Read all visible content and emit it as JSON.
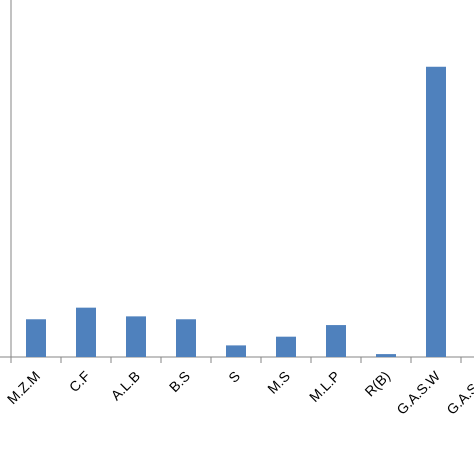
{
  "chart_data": {
    "type": "bar",
    "categories": [
      "M.Z.M",
      "C.F",
      "A.L.B",
      "B.S",
      "S",
      "M.S",
      "M.L.P",
      "R(B)",
      "G.A.S.W",
      "G.A.S.W"
    ],
    "values": [
      1.3,
      1.7,
      1.4,
      1.3,
      0.4,
      0.7,
      1.1,
      0.1,
      10.0,
      0.0
    ],
    "ylim": [
      0,
      12.3
    ],
    "grid": false,
    "bar_color": "#4f81bd",
    "axis_color": "#868686"
  }
}
